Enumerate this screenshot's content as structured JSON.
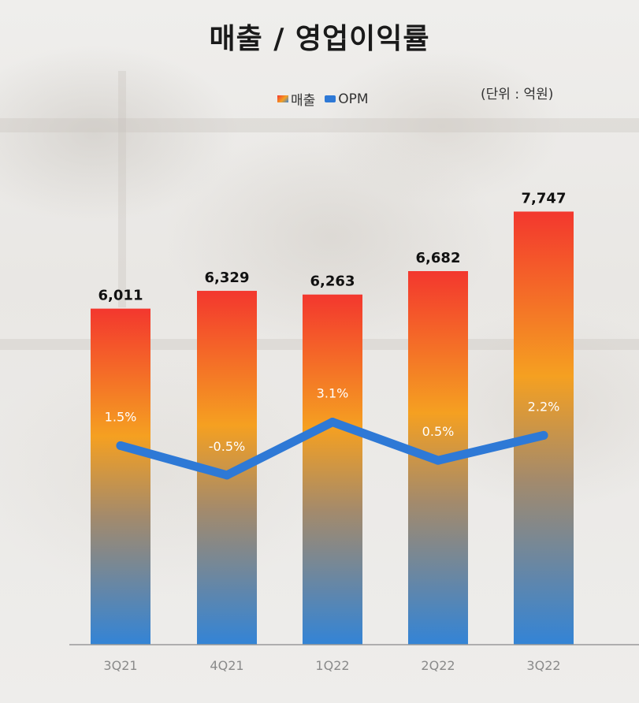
{
  "title": "매출 / 영업이익률",
  "unit_label": "(단위 : 억원)",
  "legend": {
    "sales": "매출",
    "opm": "OPM"
  },
  "colors": {
    "bar_top": "#f3372e",
    "bar_mid": "#f5a021",
    "bar_bottom": "#3a85d9",
    "opm_line": "#2e79d6"
  },
  "chart_data": {
    "type": "bar",
    "title": "매출 / 영업이익률",
    "categories": [
      "3Q21",
      "4Q21",
      "1Q22",
      "2Q22",
      "3Q22"
    ],
    "series": [
      {
        "name": "매출",
        "type": "bar",
        "values": [
          6011,
          6329,
          6263,
          6682,
          7747
        ],
        "labels": [
          "6,011",
          "6,329",
          "6,263",
          "6,682",
          "7,747"
        ]
      },
      {
        "name": "OPM",
        "type": "line",
        "values": [
          1.5,
          -0.5,
          3.1,
          0.5,
          2.2
        ],
        "labels": [
          "1.5%",
          "-0.5%",
          "3.1%",
          "0.5%",
          "2.2%"
        ]
      }
    ],
    "ylim": [
      0,
      8000
    ],
    "opm_ylim": [
      -12,
      5
    ],
    "grid": false,
    "legend_position": "top-center"
  }
}
